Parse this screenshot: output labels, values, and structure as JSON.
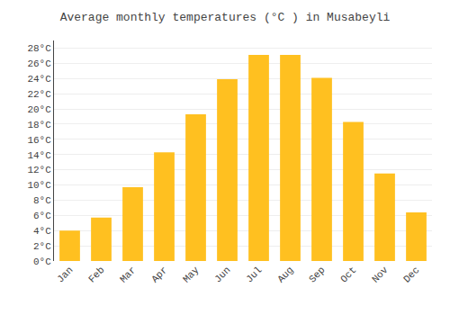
{
  "chart_data": {
    "type": "bar",
    "title": "Average monthly temperatures (°C ) in Musabeyli",
    "categories": [
      "Jan",
      "Feb",
      "Mar",
      "Apr",
      "May",
      "Jun",
      "Jul",
      "Aug",
      "Sep",
      "Oct",
      "Nov",
      "Dec"
    ],
    "values": [
      4.0,
      5.7,
      9.7,
      14.3,
      19.3,
      23.9,
      27.1,
      27.1,
      24.1,
      18.3,
      11.5,
      6.4
    ],
    "color": "#FFC020",
    "ylim": [
      0,
      29
    ],
    "yticks": [
      {
        "value": 0,
        "label": "0°C"
      },
      {
        "value": 2,
        "label": "2°C"
      },
      {
        "value": 4,
        "label": "4°C"
      },
      {
        "value": 6,
        "label": "6°C"
      },
      {
        "value": 8,
        "label": "8°C"
      },
      {
        "value": 10,
        "label": "10°C"
      },
      {
        "value": 12,
        "label": "12°C"
      },
      {
        "value": 14,
        "label": "14°C"
      },
      {
        "value": 16,
        "label": "16°C"
      },
      {
        "value": 18,
        "label": "18°C"
      },
      {
        "value": 20,
        "label": "20°C"
      },
      {
        "value": 22,
        "label": "22°C"
      },
      {
        "value": 24,
        "label": "24°C"
      },
      {
        "value": 26,
        "label": "26°C"
      },
      {
        "value": 28,
        "label": "28°C"
      }
    ],
    "grid": true
  }
}
